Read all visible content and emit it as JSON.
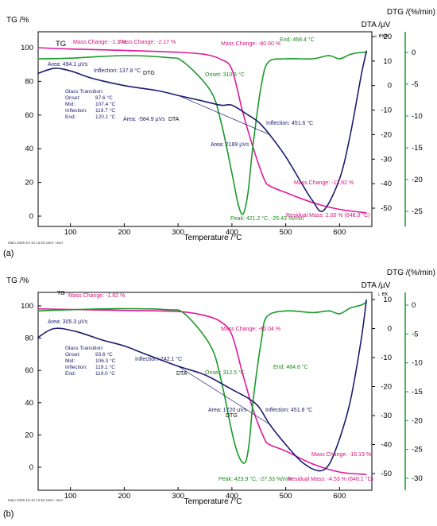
{
  "panels": [
    {
      "id": "a",
      "label": "(a)",
      "footer": "Main   2005-10-10 13:04    User: User",
      "axes": {
        "x": {
          "title": "Temperature /°C",
          "ticks": [
            100,
            200,
            300,
            400,
            500,
            600
          ],
          "range": [
            40,
            660
          ]
        },
        "tg": {
          "title": "TG /%",
          "ticks": [
            0,
            20,
            40,
            60,
            80,
            100
          ],
          "range": [
            -4,
            106
          ]
        },
        "dta": {
          "title": "DTA /µV",
          "ticks": [
            -50,
            -40,
            -30,
            -20,
            -10,
            0,
            10,
            20
          ],
          "range": [
            -56,
            24
          ]
        },
        "dtg": {
          "title": "DTG /(%/min)",
          "ticks": [
            -25,
            -20,
            -15,
            -10,
            -5,
            0
          ],
          "range": [
            -28,
            2.2
          ]
        }
      },
      "exo": "↓ exo",
      "curve_labels": {
        "tg": "TG",
        "dtg": "DTG",
        "dta": "DTA"
      },
      "annotations": {
        "mass_change_1": "Mass Change: -1.1 %",
        "mass_change_2": "Mass Change: -2.17 %",
        "mass_change_3": "Mass Change: -80.60 %",
        "mass_change_4": "Mass Change: -13.92 %",
        "residual": "Residual Mass: 2.00 % (648.0 °C)",
        "end": "End: 468.4 °C",
        "onset": "Onset: 310.5 °C",
        "peak": "Peak: 421.2 °C, -25.43 %/min",
        "area1": "Area: 494.1 µVs",
        "area2": "Area: -584.9 µVs",
        "area3": "Area: 2189 µVs",
        "inflection1": "Inflection: 137.8 °C",
        "inflection2": "Inflection: 451.6 °C",
        "glass": {
          "title": "Glass Transition:",
          "rows": [
            {
              "k": "Onset:",
              "v": "87.6 °C"
            },
            {
              "k": "Mid:",
              "v": "107.4 °C"
            },
            {
              "k": "Inflection:",
              "v": "119.7 °C"
            },
            {
              "k": "End:",
              "v": "120.1 °C"
            }
          ]
        }
      }
    },
    {
      "id": "b",
      "label": "(b)",
      "footer": "Main   2005-10-10 12:53    User: User",
      "axes": {
        "x": {
          "title": "Temperature /°C",
          "ticks": [
            100,
            200,
            300,
            400,
            500,
            600
          ],
          "range": [
            40,
            660
          ]
        },
        "tg": {
          "title": "TG /%",
          "ticks": [
            0,
            20,
            40,
            60,
            80,
            100
          ],
          "range": [
            -6,
            106
          ]
        },
        "dta": {
          "title": "DTA /µV",
          "ticks": [
            -50,
            -40,
            -30,
            -20,
            -10,
            0,
            10
          ],
          "range": [
            -54,
            15
          ]
        },
        "dtg": {
          "title": "DTG /(%/min)",
          "ticks": [
            -30,
            -25,
            -20,
            -15,
            -10,
            -5,
            0
          ],
          "range": [
            -31,
            3
          ]
        }
      },
      "exo": "↓ ex",
      "curve_labels": {
        "tg": "TG",
        "dtg": "DTG",
        "dta": "DTA"
      },
      "annotations": {
        "mass_change_1": "Mass Change: -1.82 %",
        "mass_change_3": "Mass Change: -82.04 %",
        "mass_change_4": "Mass Change: -16.19 %",
        "residual": "Residual Mass: -4.53 % (648.1 °C)",
        "end": "End: 464.8 °C",
        "onset": "Onset: 312.5 °C",
        "peak": "Peak: 423.9 °C, -27.33 %/min",
        "area1": "Area: 305.3 µVs",
        "area3": "Area: 1720 µVs",
        "inflection1": "Inflection: 242.1 °C",
        "inflection2": "Inflection: 451.8 °C",
        "glass": {
          "title": "Glass Transition:",
          "rows": [
            {
              "k": "Onset:",
              "v": "93.6 °C"
            },
            {
              "k": "Mid:",
              "v": "106.3 °C"
            },
            {
              "k": "Inflection:",
              "v": "119.1 °C"
            },
            {
              "k": "End:",
              "v": "119.0 °C"
            }
          ]
        }
      }
    }
  ],
  "colors": {
    "tg": "#e0189a",
    "dtg": "#1a9a2a",
    "dta": "#1c1c6e",
    "annotation_tg": "#d4147e",
    "annotation_dtg": "#1a8a1a",
    "annotation_dta": "#1c1c6e"
  },
  "chart_data": [
    {
      "type": "line",
      "panel": "a",
      "xlabel": "Temperature /°C",
      "series": [
        {
          "name": "TG",
          "axis": "TG /%",
          "x": [
            40,
            100,
            200,
            300,
            350,
            380,
            400,
            420,
            440,
            460,
            470,
            500,
            550,
            600,
            650
          ],
          "y": [
            100,
            99.2,
            98.4,
            97.3,
            96,
            93,
            87,
            62,
            40,
            22,
            18,
            14,
            8,
            4,
            2
          ]
        },
        {
          "name": "DTG",
          "axis": "DTG /(%/min)",
          "x": [
            40,
            100,
            200,
            280,
            310,
            360,
            380,
            400,
            412,
            421,
            430,
            440,
            455,
            468,
            500,
            550,
            580,
            600,
            620,
            640,
            650
          ],
          "y": [
            -1,
            -0.9,
            -0.5,
            -0.8,
            -1.5,
            -6,
            -11,
            -19,
            -24,
            -25.4,
            -22,
            -14,
            -5,
            -1.5,
            -1,
            -1,
            -0.5,
            -1,
            -0.3,
            0,
            0
          ]
        },
        {
          "name": "DTA",
          "axis": "DTA /µV",
          "x": [
            40,
            70,
            100,
            140,
            200,
            260,
            300,
            340,
            380,
            400,
            430,
            450,
            470,
            500,
            530,
            550,
            570,
            600,
            620,
            640,
            650
          ],
          "y": [
            5,
            7,
            6,
            3,
            0,
            -2,
            -4,
            -6,
            -8,
            -8,
            -12,
            -15,
            -20,
            -29,
            -40,
            -47,
            -51,
            -38,
            -20,
            4,
            14
          ]
        }
      ]
    },
    {
      "type": "line",
      "panel": "b",
      "xlabel": "Temperature /°C",
      "series": [
        {
          "name": "TG",
          "axis": "TG /%",
          "x": [
            40,
            100,
            200,
            300,
            350,
            380,
            400,
            420,
            440,
            460,
            470,
            500,
            550,
            600,
            650
          ],
          "y": [
            98.2,
            97.8,
            97.2,
            96.5,
            94,
            90,
            82,
            58,
            35,
            18,
            14,
            10,
            2,
            -3,
            -4.5
          ]
        },
        {
          "name": "DTG",
          "axis": "DTG /(%/min)",
          "x": [
            40,
            100,
            200,
            280,
            312,
            360,
            380,
            400,
            412,
            424,
            432,
            440,
            455,
            465,
            500,
            550,
            580,
            600,
            620,
            640,
            650
          ],
          "y": [
            -1,
            -0.8,
            -0.6,
            -0.8,
            -1.5,
            -7,
            -13,
            -22,
            -26,
            -27.3,
            -24,
            -16,
            -6,
            -2,
            -1,
            -1.3,
            -1,
            -1.5,
            -0.5,
            0,
            0.5
          ]
        },
        {
          "name": "DTA",
          "axis": "DTA /µV",
          "x": [
            40,
            70,
            110,
            160,
            200,
            242,
            300,
            350,
            400,
            430,
            450,
            470,
            500,
            530,
            560,
            580,
            600,
            620,
            640,
            650
          ],
          "y": [
            -3,
            0,
            -1,
            -4,
            -6,
            -9,
            -13,
            -16,
            -21,
            -24,
            -27,
            -33,
            -40,
            -46,
            -49,
            -47,
            -38,
            -25,
            -4,
            10
          ]
        }
      ]
    }
  ]
}
